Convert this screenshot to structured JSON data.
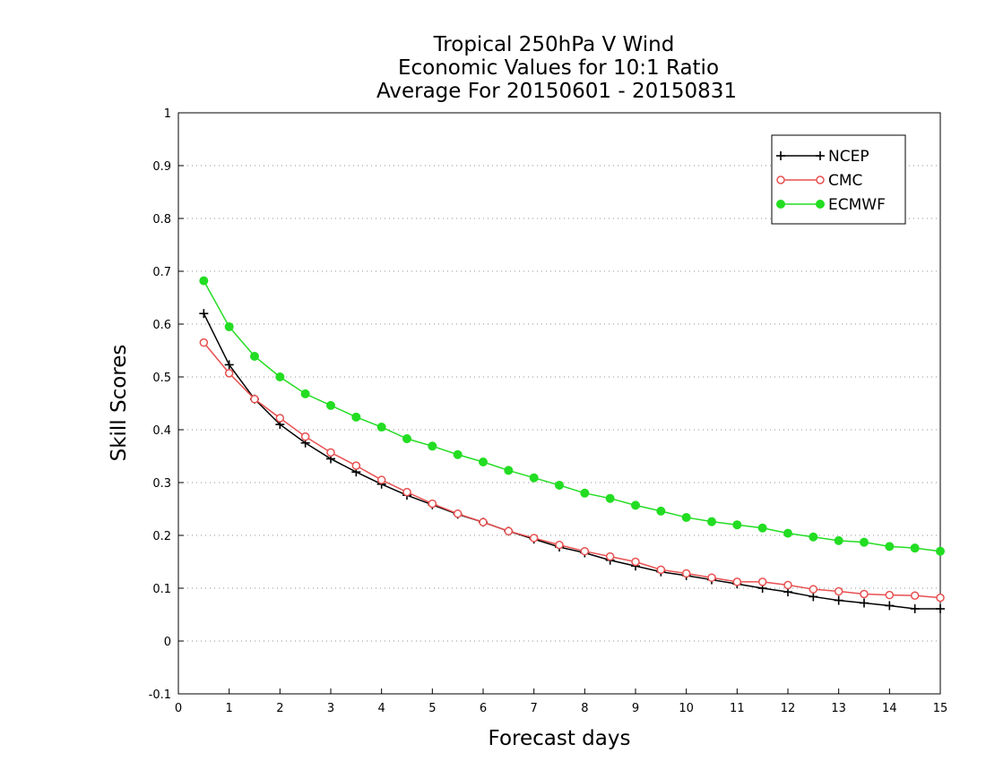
{
  "chart_data": {
    "type": "line",
    "title": [
      "Tropical 250hPa V Wind",
      "Economic Values for 10:1 Ratio",
      "Average For 20150601 - 20150831"
    ],
    "xlabel": "Forecast days",
    "ylabel": "Skill Scores",
    "xlim": [
      0,
      15
    ],
    "ylim": [
      -0.1,
      1
    ],
    "xticks": [
      0,
      1,
      2,
      3,
      4,
      5,
      6,
      7,
      8,
      9,
      10,
      11,
      12,
      13,
      14,
      15
    ],
    "yticks": [
      -0.1,
      0,
      0.1,
      0.2,
      0.3,
      0.4,
      0.5,
      0.6,
      0.7,
      0.8,
      0.9,
      1
    ],
    "ytick_labels": [
      "-0.1",
      "0",
      "0.1",
      "0.2",
      "0.3",
      "0.4",
      "0.5",
      "0.6",
      "0.7",
      "0.8",
      "0.9",
      "1"
    ],
    "grid": "horizontal dotted",
    "legend": "top-right",
    "x": [
      0.5,
      1,
      1.5,
      2,
      2.5,
      3,
      3.5,
      4,
      4.5,
      5,
      5.5,
      6,
      6.5,
      7,
      7.5,
      8,
      8.5,
      9,
      9.5,
      10,
      10.5,
      11,
      11.5,
      12,
      12.5,
      13,
      13.5,
      14,
      14.5,
      15
    ],
    "series": [
      {
        "name": "NCEP",
        "color": "#000000",
        "marker": "plus",
        "values": [
          0.62,
          0.523,
          0.458,
          0.41,
          0.375,
          0.345,
          0.32,
          0.297,
          0.276,
          0.258,
          0.24,
          0.225,
          0.208,
          0.193,
          0.178,
          0.167,
          0.153,
          0.142,
          0.131,
          0.124,
          0.116,
          0.108,
          0.1,
          0.093,
          0.084,
          0.077,
          0.072,
          0.067,
          0.061,
          0.061
        ]
      },
      {
        "name": "CMC",
        "color": "#e85050",
        "marker": "open-circle",
        "values": [
          0.565,
          0.507,
          0.458,
          0.422,
          0.387,
          0.357,
          0.332,
          0.305,
          0.282,
          0.26,
          0.241,
          0.225,
          0.208,
          0.195,
          0.182,
          0.17,
          0.16,
          0.15,
          0.135,
          0.128,
          0.12,
          0.112,
          0.112,
          0.106,
          0.098,
          0.094,
          0.089,
          0.087,
          0.086,
          0.082
        ]
      },
      {
        "name": "ECMWF",
        "color": "#22dd22",
        "marker": "filled-circle",
        "values": [
          0.682,
          0.595,
          0.539,
          0.5,
          0.468,
          0.446,
          0.424,
          0.405,
          0.383,
          0.369,
          0.353,
          0.339,
          0.323,
          0.309,
          0.295,
          0.28,
          0.27,
          0.257,
          0.246,
          0.234,
          0.226,
          0.22,
          0.214,
          0.204,
          0.197,
          0.19,
          0.187,
          0.179,
          0.176,
          0.17
        ]
      }
    ]
  }
}
